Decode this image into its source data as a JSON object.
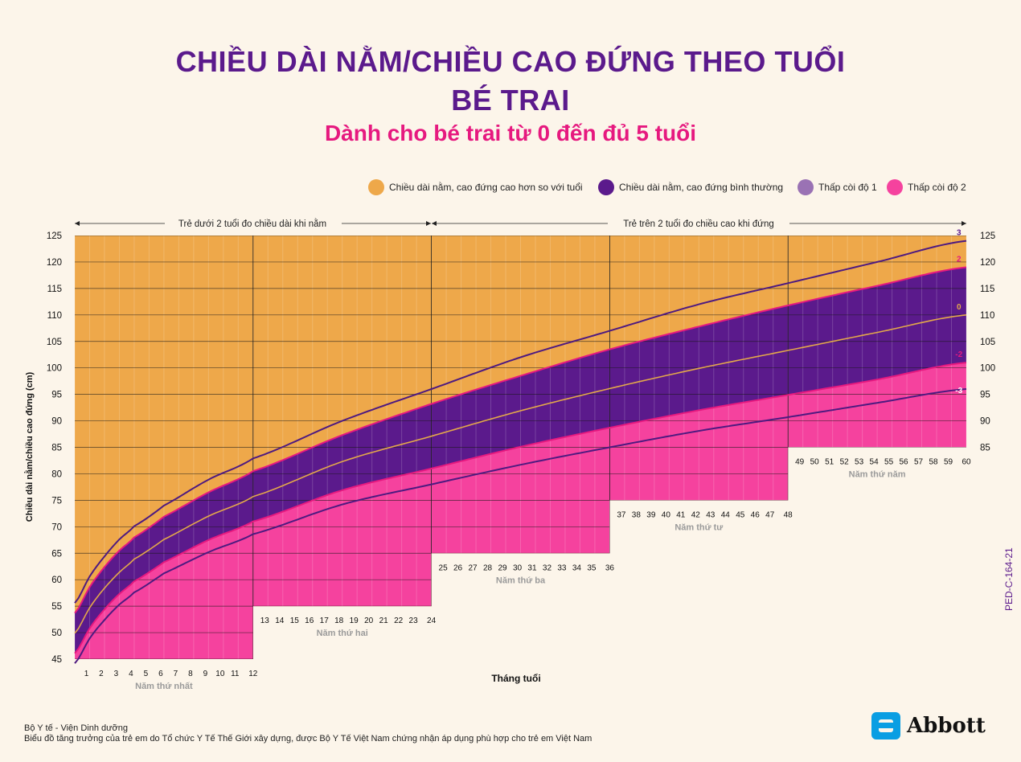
{
  "header": {
    "title_line1": "CHIỀU DÀI NẰM/CHIỀU CAO ĐỨNG THEO TUỔI",
    "title_line2": "BÉ TRAI",
    "subtitle": "Dành cho bé trai từ 0 đến đủ 5 tuổi"
  },
  "legend": [
    {
      "label": "Chiều dài nằm, cao đứng cao hơn so với tuổi",
      "color": "#eea84a"
    },
    {
      "label": "Chiều dài nằm, cao đứng bình thường",
      "color": "#5b1a8c"
    },
    {
      "label": "Thấp còi độ 1",
      "color": "#9a72b4"
    },
    {
      "label": "Thấp còi độ 2",
      "color": "#f5429e"
    }
  ],
  "ranges": {
    "left_label": "Trẻ dưới 2 tuổi đo chiều dài khi nằm",
    "right_label": "Trẻ trên 2 tuổi đo chiều cao khi đứng"
  },
  "chart_data": {
    "type": "line",
    "xlabel": "Tháng tuổi",
    "ylabel": "Chiều dài nằm/chiều cao đứng (cm)",
    "xlim": [
      0,
      60
    ],
    "ylim": [
      45,
      125
    ],
    "y_ticks": [
      45,
      50,
      55,
      60,
      65,
      70,
      75,
      80,
      85,
      90,
      95,
      100,
      105,
      110,
      115,
      120,
      125
    ],
    "x_ticks": [
      1,
      2,
      3,
      4,
      5,
      6,
      7,
      8,
      9,
      10,
      11,
      12,
      13,
      14,
      15,
      16,
      17,
      18,
      19,
      20,
      21,
      22,
      23,
      24,
      25,
      26,
      27,
      28,
      29,
      30,
      31,
      32,
      33,
      34,
      35,
      36,
      37,
      38,
      39,
      40,
      41,
      42,
      43,
      44,
      45,
      46,
      47,
      48,
      49,
      50,
      51,
      52,
      53,
      54,
      55,
      56,
      57,
      58,
      59,
      60
    ],
    "year_labels": [
      "Năm thứ nhất",
      "Năm thứ hai",
      "Năm thứ ba",
      "Năm thứ tư",
      "Năm thứ năm"
    ],
    "x": [
      0,
      1,
      2,
      3,
      4,
      6,
      9,
      12,
      18,
      24,
      30,
      36,
      42,
      48,
      54,
      60
    ],
    "series": [
      {
        "name": "3",
        "values": [
          55.6,
          60.6,
          64.4,
          67.6,
          70.1,
          74.0,
          78.9,
          82.9,
          90.0,
          96.0,
          102.0,
          107.0,
          112.0,
          116.0,
          120.0,
          124.0
        ]
      },
      {
        "name": "2",
        "values": [
          53.7,
          58.6,
          62.4,
          65.5,
          68.0,
          71.9,
          76.5,
          80.5,
          87.3,
          93.2,
          98.5,
          103.5,
          107.8,
          111.8,
          115.5,
          119.0
        ]
      },
      {
        "name": "0",
        "values": [
          49.9,
          54.7,
          58.4,
          61.4,
          63.9,
          67.6,
          72.0,
          75.7,
          82.3,
          87.1,
          91.9,
          96.1,
          99.9,
          103.3,
          106.7,
          110.0
        ]
      },
      {
        "name": "-2",
        "values": [
          46.1,
          50.8,
          54.4,
          57.3,
          59.7,
          63.3,
          67.5,
          71.0,
          76.9,
          81.0,
          85.1,
          88.7,
          92.0,
          94.9,
          97.8,
          101.0
        ]
      },
      {
        "name": "-3",
        "values": [
          44.2,
          48.9,
          52.4,
          55.3,
          57.6,
          61.2,
          65.2,
          68.6,
          74.2,
          78.0,
          81.7,
          85.0,
          88.1,
          90.7,
          93.4,
          96.0
        ]
      }
    ],
    "band_colors": {
      "above": "#eea84a",
      "normal": "#5b1a8c",
      "stunt1": "#9a72b4",
      "stunt2": "#f5429e",
      "median_line": "#e3a84a",
      "outer_line": "#4e1a80",
      "pink_line": "#e6197f"
    }
  },
  "footer": {
    "line1": "Bộ Y tế - Viện Dinh dưỡng",
    "line2": "Biểu đồ tăng trưởng của trẻ em do Tổ chức Y Tế Thế Giới xây dựng, được Bộ Y Tế Việt Nam chứng nhận áp dụng phù hợp cho trẻ em Việt Nam",
    "code": "PED-C-164-21",
    "brand": "Abbott"
  }
}
